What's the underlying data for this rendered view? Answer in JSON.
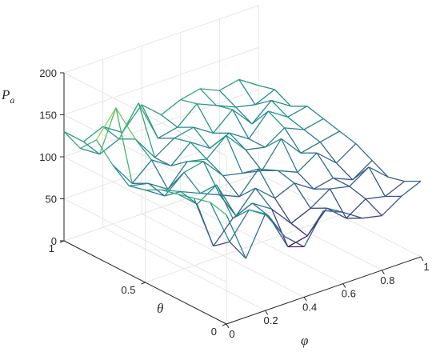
{
  "chart_data": {
    "type": "surface3d",
    "render_style": "mesh-lines-colored-by-height",
    "zlabel": "P",
    "zlabel_sub": "a",
    "xlabel": "φ",
    "ylabel": "θ",
    "xlim": [
      0,
      1
    ],
    "ylim": [
      0,
      1
    ],
    "zlim": [
      0,
      200
    ],
    "xticks": [
      "0",
      "0.2",
      "0.4",
      "0.6",
      "0.8",
      "1"
    ],
    "yticks": [
      "0",
      "0.5",
      "1"
    ],
    "zticks": [
      "0",
      "50",
      "100",
      "150",
      "200"
    ],
    "grid": true,
    "colormap": [
      "#440154",
      "#3b528b",
      "#21918c",
      "#5ec962",
      "#fde725"
    ],
    "x": [
      0,
      0.1,
      0.2,
      0.3,
      0.4,
      0.5,
      0.6,
      0.7,
      0.8,
      0.9,
      1.0
    ],
    "y": [
      0,
      0.1,
      0.2,
      0.3,
      0.4,
      0.5,
      0.6,
      0.7,
      0.8,
      0.9,
      1.0
    ],
    "z": [
      [
        130,
        70,
        115,
        80,
        60,
        95,
        85,
        70,
        65,
        80,
        90
      ],
      [
        135,
        80,
        110,
        95,
        50,
        55,
        80,
        60,
        75,
        70,
        80
      ],
      [
        130,
        65,
        90,
        100,
        85,
        60,
        70,
        85,
        80,
        95,
        75
      ],
      [
        125,
        105,
        120,
        75,
        100,
        80,
        90,
        75,
        80,
        70,
        85
      ],
      [
        120,
        110,
        100,
        90,
        80,
        105,
        95,
        85,
        100,
        80,
        95
      ],
      [
        110,
        95,
        115,
        120,
        95,
        90,
        85,
        115,
        90,
        95,
        100
      ],
      [
        105,
        100,
        85,
        110,
        105,
        125,
        100,
        95,
        110,
        100,
        105
      ],
      [
        120,
        90,
        110,
        95,
        115,
        100,
        110,
        95,
        120,
        105,
        110
      ],
      [
        140,
        170,
        125,
        95,
        110,
        115,
        100,
        120,
        95,
        115,
        100
      ],
      [
        120,
        105,
        115,
        150,
        100,
        105,
        125,
        115,
        105,
        100,
        110
      ],
      [
        130,
        110,
        120,
        105,
        130,
        110,
        120,
        125,
        115,
        120,
        105
      ]
    ]
  }
}
